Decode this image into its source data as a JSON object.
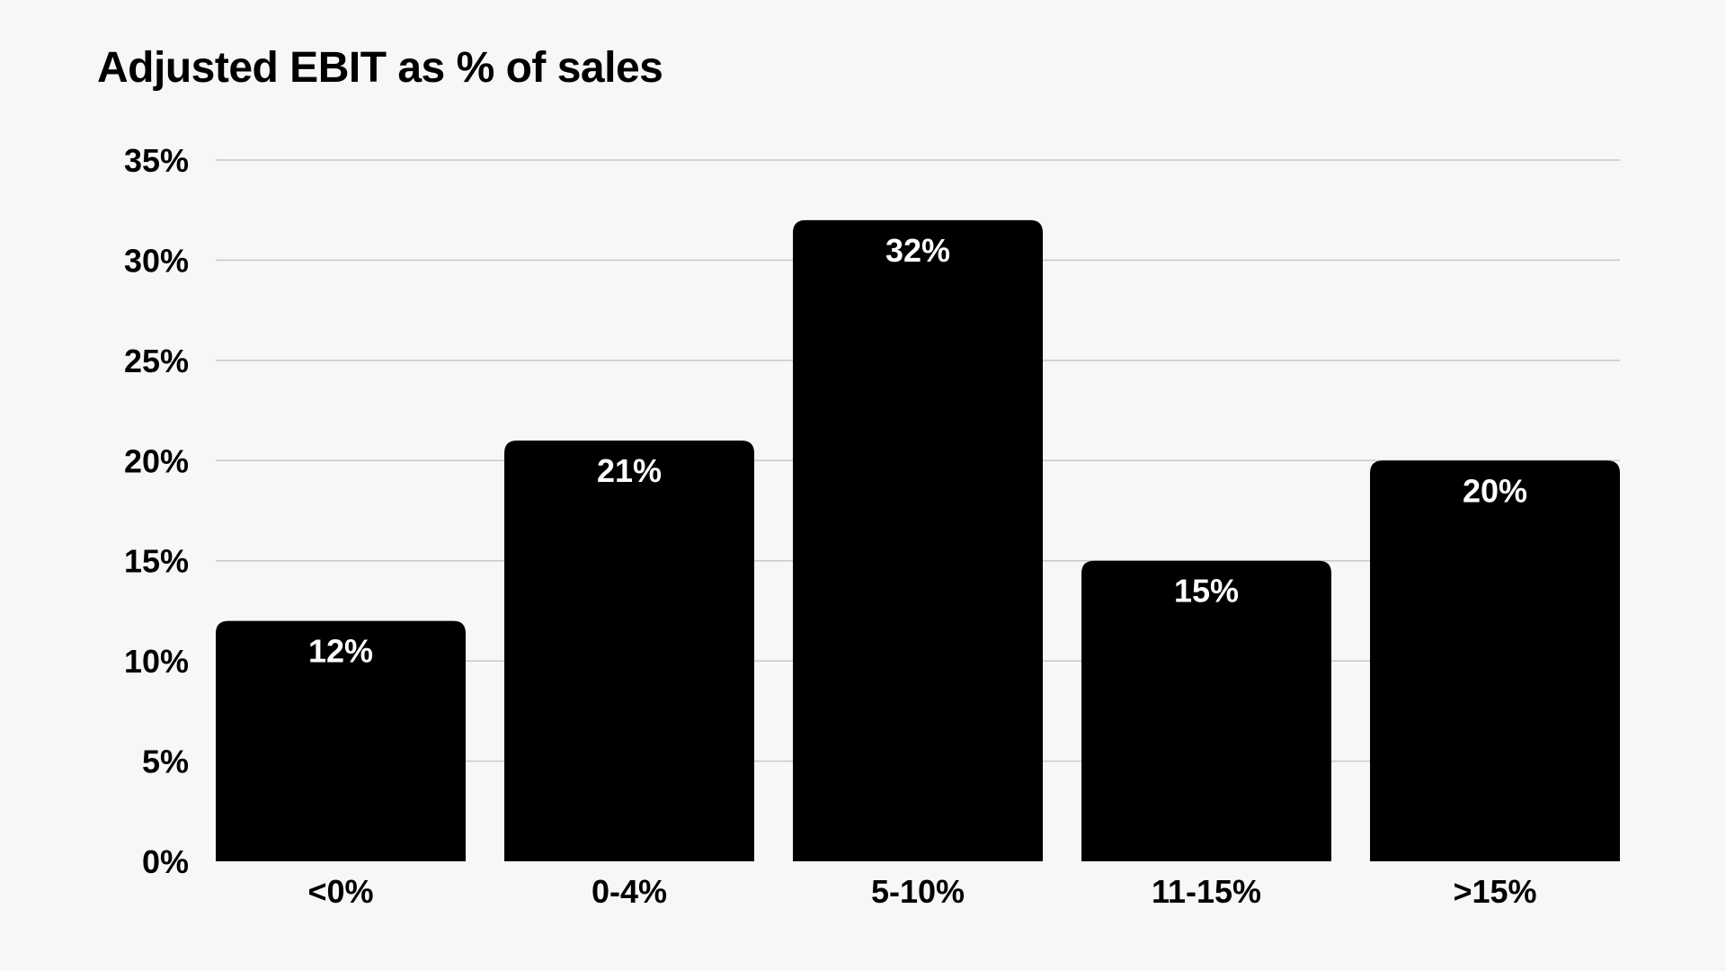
{
  "chart_data": {
    "type": "bar",
    "title": "Adjusted EBIT as % of sales",
    "xlabel": "",
    "ylabel": "",
    "categories": [
      "<0%",
      "0-4%",
      "5-10%",
      "11-15%",
      ">15%"
    ],
    "values": [
      12,
      21,
      32,
      15,
      20
    ],
    "data_labels": [
      "12%",
      "21%",
      "32%",
      "15%",
      "20%"
    ],
    "ylim": [
      0,
      35
    ],
    "y_ticks": [
      0,
      5,
      10,
      15,
      20,
      25,
      30,
      35
    ],
    "y_tick_labels": [
      "0%",
      "5%",
      "10%",
      "15%",
      "20%",
      "25%",
      "30%",
      "35%"
    ],
    "grid": true,
    "legend": "none",
    "colors": {
      "bar": "#000000",
      "data_label": "#ffffff",
      "grid": "#c8c8c8",
      "background": "#f7f7f7"
    }
  }
}
